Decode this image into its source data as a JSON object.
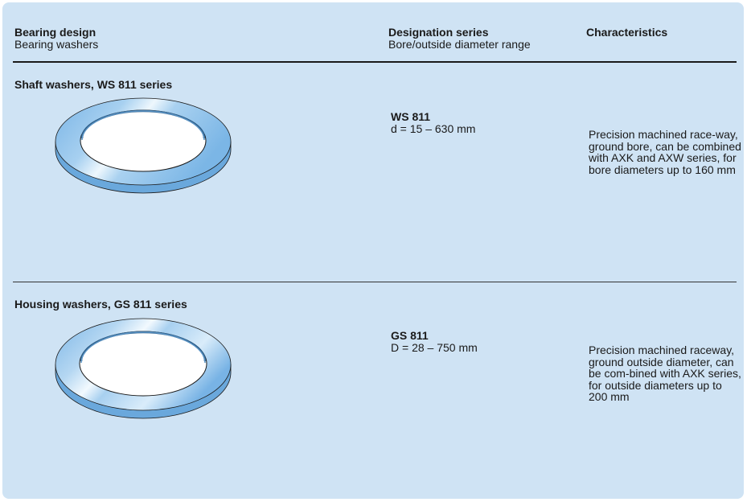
{
  "header": {
    "col1_title": "Bearing design",
    "col1_sub": "Bearing washers",
    "col2_title": "Designation series",
    "col2_sub": "Bore/outside diameter range",
    "col3_title": "Characteristics"
  },
  "rows": [
    {
      "title": "Shaft washers, WS 811 series",
      "designation": "WS 811",
      "range": "d = 15 – 630 mm",
      "characteristics": "Precision machined race-way, ground bore, can be combined with AXK and AXW series, for bore diameters up to 160 mm",
      "image": "shaft-washer-ring"
    },
    {
      "title": "Housing washers, GS 811 series",
      "designation": "GS 811",
      "range": "D = 28 – 750 mm",
      "characteristics": "Precision machined raceway, ground outside diameter, can be com-bined with AXK series, for outside diameters up to 200 mm",
      "image": "housing-washer-ring"
    }
  ],
  "colors": {
    "panel": "#cfe3f4",
    "washer": "#8cc0ea",
    "washer_light": "#e6f2fb",
    "washer_dark": "#5a9fd6"
  }
}
